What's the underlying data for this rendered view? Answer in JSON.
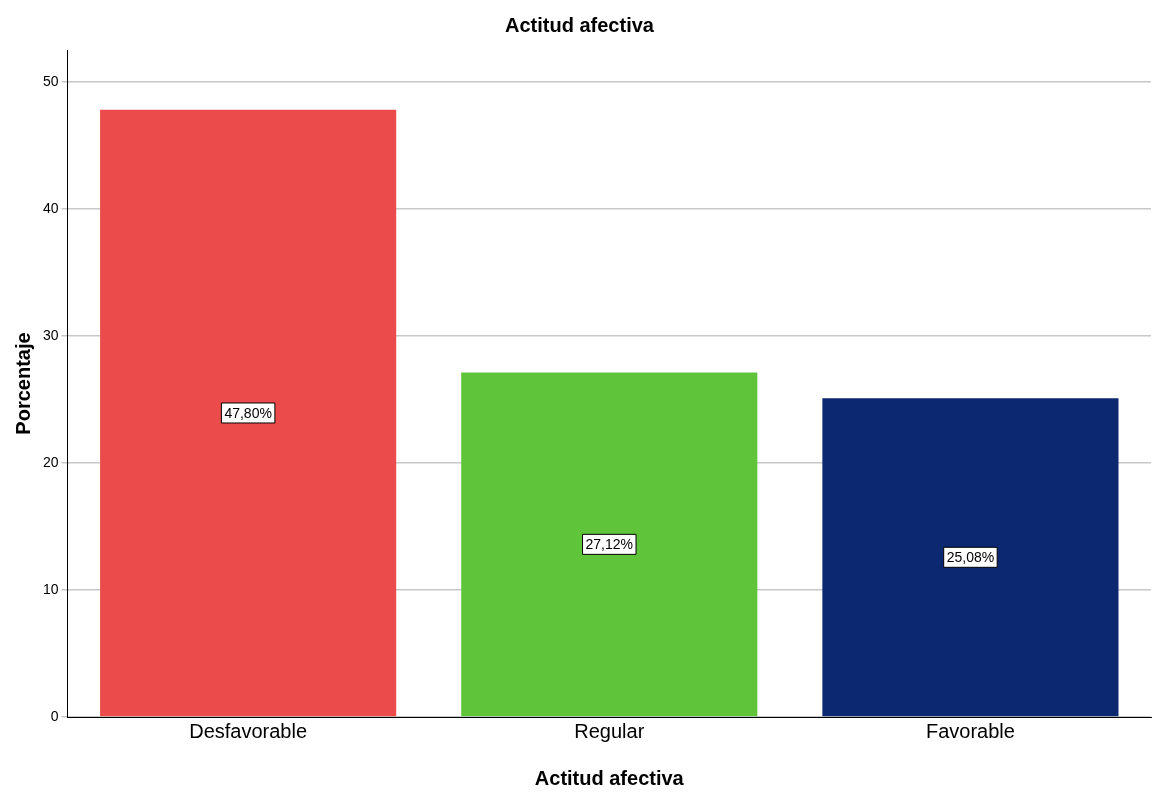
{
  "chart_data": {
    "type": "bar",
    "title": "Actitud afectiva",
    "xlabel": "Actitud afectiva",
    "ylabel": "Porcentaje",
    "categories": [
      "Desfavorable",
      "Regular",
      "Favorable"
    ],
    "values": [
      47.8,
      27.12,
      25.08
    ],
    "value_labels": [
      "47,80%",
      "27,12%",
      "25,08%"
    ],
    "colors": [
      "#ec4b4b",
      "#5fc43a",
      "#0b2870"
    ],
    "ylim": [
      0,
      52.5
    ],
    "yticks": [
      0,
      10,
      20,
      30,
      40,
      50
    ],
    "grid": "y",
    "legend": false
  }
}
